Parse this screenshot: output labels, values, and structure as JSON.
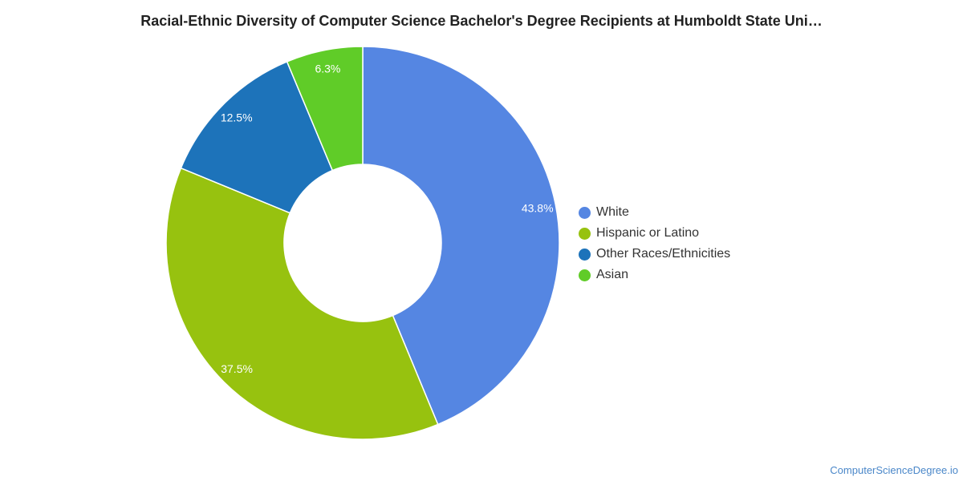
{
  "chart_data": {
    "type": "pie",
    "style": "donut",
    "title": "Racial-Ethnic Diversity of Computer Science Bachelor's Degree Recipients at Humboldt State Uni…",
    "slices": [
      {
        "label": "White",
        "value": 43.8,
        "display": "43.8%",
        "color": "#5586e2"
      },
      {
        "label": "Hispanic or Latino",
        "value": 37.5,
        "display": "37.5%",
        "color": "#97c20f"
      },
      {
        "label": "Other Races/Ethnicities",
        "value": 12.5,
        "display": "12.5%",
        "color": "#1d73ba"
      },
      {
        "label": "Asian",
        "value": 6.3,
        "display": "6.3%",
        "color": "#60cc28"
      }
    ],
    "legend_position": "right"
  },
  "watermark": "ComputerScienceDegree.io"
}
